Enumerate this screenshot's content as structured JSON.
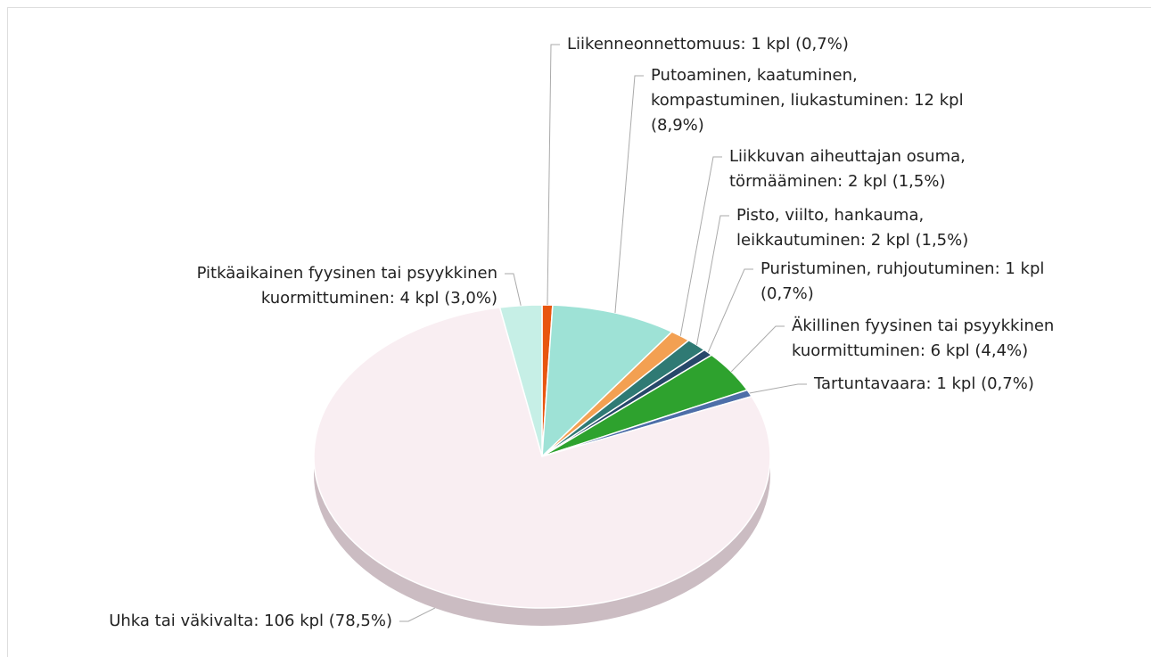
{
  "chart_data": {
    "type": "pie",
    "categories": [
      [
        "Liikenneonnettomuus: 1 kpl (0,7%)"
      ],
      [
        "Putoaminen, kaatuminen,",
        "kompastuminen, liukastuminen: 12 kpl",
        "(8,9%)"
      ],
      [
        "Liikkuvan aiheuttajan osuma,",
        "törmääminen: 2 kpl (1,5%)"
      ],
      [
        "Pisto, viilto, hankauma,",
        "leikkautuminen: 2 kpl (1,5%)"
      ],
      [
        "Puristuminen, ruhjoutuminen: 1 kpl",
        "(0,7%)"
      ],
      [
        "Äkillinen fyysinen tai psyykkinen",
        "kuormittuminen: 6 kpl (4,4%)"
      ],
      [
        "Tartuntavaara: 1 kpl (0,7%)"
      ],
      [
        "Uhka tai väkivalta: 106 kpl (78,5%)"
      ],
      [
        "Pitkäaikainen fyysinen tai psyykkinen",
        "kuormittuminen: 4 kpl (3,0%)"
      ]
    ],
    "values": [
      1,
      12,
      2,
      2,
      1,
      6,
      1,
      106,
      4
    ],
    "colors": [
      "#e8560f",
      "#9ee2d6",
      "#f3a052",
      "#2f7a74",
      "#27486a",
      "#2ea22e",
      "#4d6ea8",
      "#f9eef2",
      "#c6efe6"
    ]
  }
}
